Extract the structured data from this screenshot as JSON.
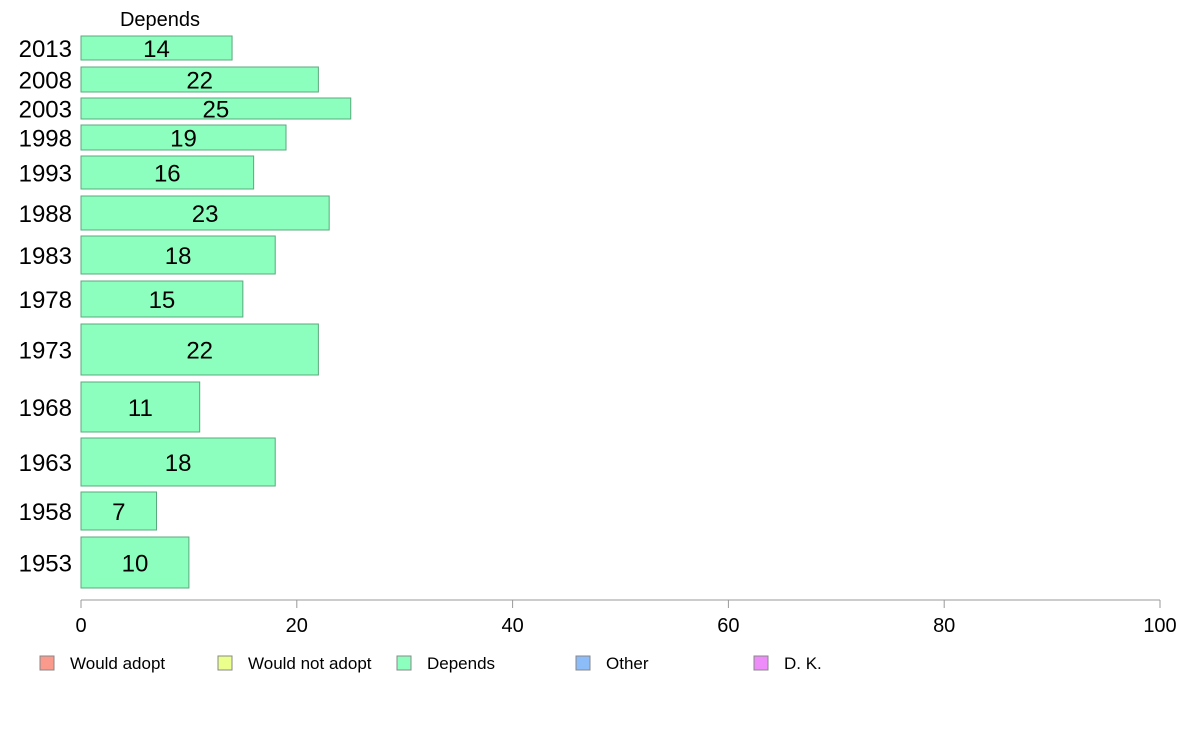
{
  "chart_data": {
    "type": "bar",
    "orientation": "horizontal",
    "column_title": "Depends",
    "categories": [
      "2013",
      "2008",
      "2003",
      "1998",
      "1993",
      "1988",
      "1983",
      "1978",
      "1973",
      "1968",
      "1963",
      "1958",
      "1953"
    ],
    "series": [
      {
        "name": "Depends",
        "values": [
          14,
          22,
          25,
          19,
          16,
          23,
          18,
          15,
          22,
          11,
          18,
          7,
          10
        ]
      }
    ],
    "xlim": [
      0,
      100
    ],
    "xticks": [
      0,
      20,
      40,
      60,
      80,
      100
    ],
    "grid": false,
    "legend_position": "bottom",
    "legend": [
      {
        "label": "Would adopt",
        "color": "#f99a8c"
      },
      {
        "label": "Would not adopt",
        "color": "#eaff8c"
      },
      {
        "label": "Depends",
        "color": "#8cffbe"
      },
      {
        "label": "Other",
        "color": "#8cbdf9"
      },
      {
        "label": "D. K.",
        "color": "#ee8cf9"
      }
    ],
    "bar_color": "#8cffbe",
    "bar_stroke": "#5aa87c",
    "axis_color": "#999999"
  }
}
